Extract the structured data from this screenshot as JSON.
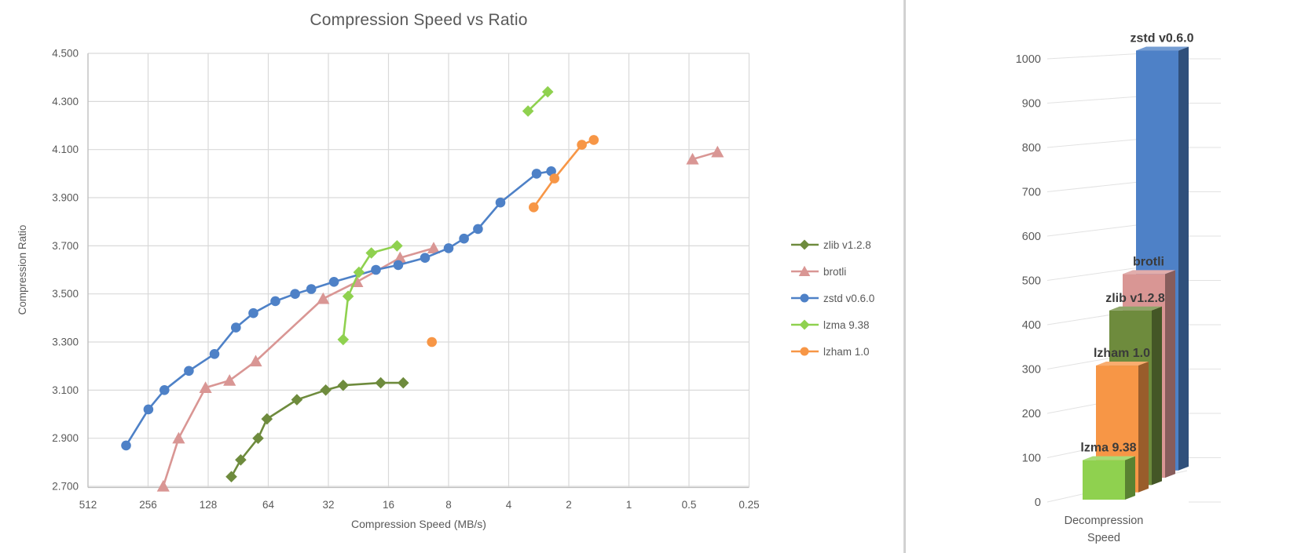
{
  "style": {
    "background": "#FFFFFF",
    "axis_text_color": "#595959",
    "grid_color": "#D9D9D9",
    "axis_line_color": "#BFBFBF",
    "bar_grid_color": "#E2E2E2",
    "bar_label_color": "#3A3A3A",
    "divider_color": "#D2D2D2"
  },
  "chart_data": [
    {
      "type": "scatter",
      "title": "Compression Speed vs Ratio",
      "xlabel": "Compression Speed (MB/s)",
      "ylabel": "Compression Ratio",
      "x_scale": "log2-reversed",
      "x_tick_labels": [
        "512",
        "256",
        "128",
        "64",
        "32",
        "16",
        "8",
        "4",
        "2",
        "1",
        "0.5",
        "0.25"
      ],
      "y_tick_labels": [
        "2.700",
        "2.900",
        "3.100",
        "3.300",
        "3.500",
        "3.700",
        "3.900",
        "4.100",
        "4.300",
        "4.500"
      ],
      "ylim": [
        2.7,
        4.5
      ],
      "grid": true,
      "legend_position": "right",
      "series": [
        {
          "name": "zlib v1.2.8",
          "color": "#6E8B3D",
          "marker": "diamond",
          "segments": [
            [
              [
                98,
                2.74
              ],
              [
                88,
                2.81
              ],
              [
                72,
                2.9
              ],
              [
                65,
                2.98
              ],
              [
                46,
                3.06
              ],
              [
                33,
                3.1
              ],
              [
                27,
                3.12
              ],
              [
                17.5,
                3.13
              ],
              [
                13.5,
                3.13
              ]
            ]
          ]
        },
        {
          "name": "brotli",
          "color": "#D99694",
          "marker": "triangle",
          "segments": [
            [
              [
                215,
                2.7
              ],
              [
                180,
                2.9
              ],
              [
                132,
                3.11
              ],
              [
                100,
                3.14
              ],
              [
                74,
                3.22
              ],
              [
                34,
                3.48
              ],
              [
                23,
                3.55
              ],
              [
                14,
                3.65
              ],
              [
                9.5,
                3.69
              ]
            ],
            [
              [
                0.48,
                4.06
              ],
              [
                0.36,
                4.09
              ]
            ]
          ]
        },
        {
          "name": "zstd v0.6.0",
          "color": "#4E81C7",
          "marker": "circle",
          "segments": [
            [
              [
                330,
                2.87
              ],
              [
                255,
                3.02
              ],
              [
                212,
                3.1
              ],
              [
                160,
                3.18
              ],
              [
                119,
                3.25
              ],
              [
                93,
                3.36
              ],
              [
                76,
                3.42
              ],
              [
                59,
                3.47
              ],
              [
                47,
                3.5
              ],
              [
                39,
                3.52
              ],
              [
                30,
                3.55
              ],
              [
                18.5,
                3.6
              ],
              [
                14.3,
                3.62
              ],
              [
                10.5,
                3.65
              ],
              [
                8,
                3.69
              ],
              [
                6.7,
                3.73
              ],
              [
                5.7,
                3.77
              ],
              [
                4.4,
                3.88
              ],
              [
                2.9,
                4.0
              ],
              [
                2.45,
                4.01
              ]
            ]
          ]
        },
        {
          "name": "lzma 9.38",
          "color": "#8FD14F",
          "marker": "diamond",
          "segments": [
            [
              [
                27,
                3.31
              ],
              [
                25.5,
                3.49
              ],
              [
                22.5,
                3.59
              ],
              [
                19.5,
                3.67
              ],
              [
                14.5,
                3.7
              ]
            ],
            [
              [
                3.2,
                4.26
              ],
              [
                2.55,
                4.34
              ]
            ]
          ]
        },
        {
          "name": "lzham 1.0",
          "color": "#F79646",
          "marker": "circle",
          "segments": [
            [
              [
                9.7,
                3.3
              ]
            ],
            [
              [
                3.0,
                3.86
              ],
              [
                2.36,
                3.98
              ],
              [
                1.72,
                4.12
              ],
              [
                1.5,
                4.14
              ]
            ]
          ]
        }
      ]
    },
    {
      "type": "bar",
      "style": "3d",
      "xlabel": "Decompression Speed",
      "y_tick_labels": [
        "0",
        "100",
        "200",
        "300",
        "400",
        "500",
        "600",
        "700",
        "800",
        "900",
        "1000"
      ],
      "ylim": [
        0,
        1000
      ],
      "bars_front_to_back": [
        {
          "name": "lzma 9.38",
          "value": 95,
          "color": "#8FD14F"
        },
        {
          "name": "lzham 1.0",
          "value": 305,
          "color": "#F79646"
        },
        {
          "name": "zlib v1.2.8",
          "value": 420,
          "color": "#6E8B3D"
        },
        {
          "name": "brotli",
          "value": 490,
          "color": "#D99694"
        },
        {
          "name": "zstd v0.6.0",
          "value": 1010,
          "color": "#4E81C7"
        }
      ]
    }
  ]
}
